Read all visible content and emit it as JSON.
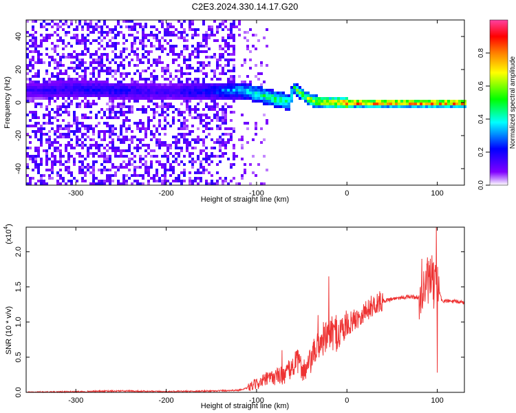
{
  "title": "C2E3.2024.330.14.17.G20",
  "chart_data": [
    {
      "type": "heatmap",
      "xlabel": "Height of straight line (km)",
      "ylabel": "Frequency (Hz)",
      "xlim": [
        -355,
        130
      ],
      "ylim": [
        -50,
        50
      ],
      "xticks": [
        -300,
        -200,
        -100,
        0,
        100
      ],
      "yticks": [
        -40,
        -20,
        0,
        20,
        40
      ],
      "colorbar": {
        "label": "Normalized spectral amplitude",
        "range": [
          0,
          1
        ],
        "ticks": [
          "0.0",
          "0.2",
          "0.4",
          "0.6",
          "0.8"
        ],
        "colors": [
          "#ffffff",
          "#8000ff",
          "#0000ff",
          "#00ffff",
          "#00ff00",
          "#ffff00",
          "#ff8000",
          "#ff0000",
          "#ff40a0"
        ]
      },
      "ridge": {
        "x": [
          -350,
          -300,
          -250,
          -200,
          -150,
          -120,
          -100,
          -80,
          -65,
          -60,
          -50,
          -40,
          -30,
          -20,
          0,
          50,
          100,
          130
        ],
        "frequency": [
          8,
          9,
          8,
          7,
          8,
          8,
          6,
          3,
          1,
          10,
          5,
          2,
          1,
          1,
          0.5,
          0.5,
          0.5,
          0.5
        ],
        "amplitude": [
          0.15,
          0.2,
          0.2,
          0.15,
          0.25,
          0.35,
          0.45,
          0.5,
          0.45,
          0.5,
          0.55,
          0.6,
          0.65,
          0.65,
          0.85,
          0.85,
          0.85,
          0.85
        ]
      },
      "noise_region_x": [
        -355,
        -125
      ]
    },
    {
      "type": "line",
      "xlabel": "Height of straight line (km)",
      "ylabel": "SNR (10 * v/v)",
      "y_multiplier": "(x10",
      "y_multiplier_exp": "4",
      "xlim": [
        -355,
        130
      ],
      "ylim": [
        0,
        2.35
      ],
      "xticks": [
        -300,
        -200,
        -100,
        0,
        100
      ],
      "yticks": [
        "0.0",
        "0.5",
        "1.0",
        "1.5",
        "2.0"
      ],
      "color": "#ee3333",
      "series": [
        {
          "x": [
            -355,
            -300,
            -250,
            -200,
            -150,
            -120,
            -110,
            -100,
            -90,
            -80,
            -70,
            -60,
            -55,
            -50,
            -45,
            -40,
            -35,
            -30,
            -25,
            -20,
            -15,
            -10,
            -5,
            0,
            10,
            20,
            30,
            40,
            50,
            60,
            70,
            80,
            85,
            90,
            95,
            100,
            105,
            110,
            120,
            130
          ],
          "y": [
            0.0,
            0.01,
            0.02,
            0.01,
            0.02,
            0.03,
            0.06,
            0.12,
            0.18,
            0.22,
            0.25,
            0.35,
            0.45,
            0.35,
            0.3,
            0.45,
            0.6,
            0.7,
            0.75,
            0.8,
            0.85,
            0.82,
            0.9,
            0.95,
            1.05,
            1.15,
            1.25,
            1.3,
            1.33,
            1.35,
            1.36,
            1.35,
            1.45,
            1.6,
            1.5,
            1.55,
            1.3,
            1.3,
            1.29,
            1.28
          ]
        }
      ],
      "spikes": [
        {
          "x": -72,
          "y": 0.6
        },
        {
          "x": -57,
          "y": 0.58
        },
        {
          "x": -32,
          "y": 1.1
        },
        {
          "x": -26,
          "y": 1.0
        },
        {
          "x": -20,
          "y": 1.65
        },
        {
          "x": -12,
          "y": 1.1
        },
        {
          "x": 83,
          "y": 1.9
        },
        {
          "x": 94,
          "y": 1.95
        },
        {
          "x": 99,
          "y": 2.35
        },
        {
          "x": 100,
          "y": 0.28
        }
      ]
    }
  ]
}
